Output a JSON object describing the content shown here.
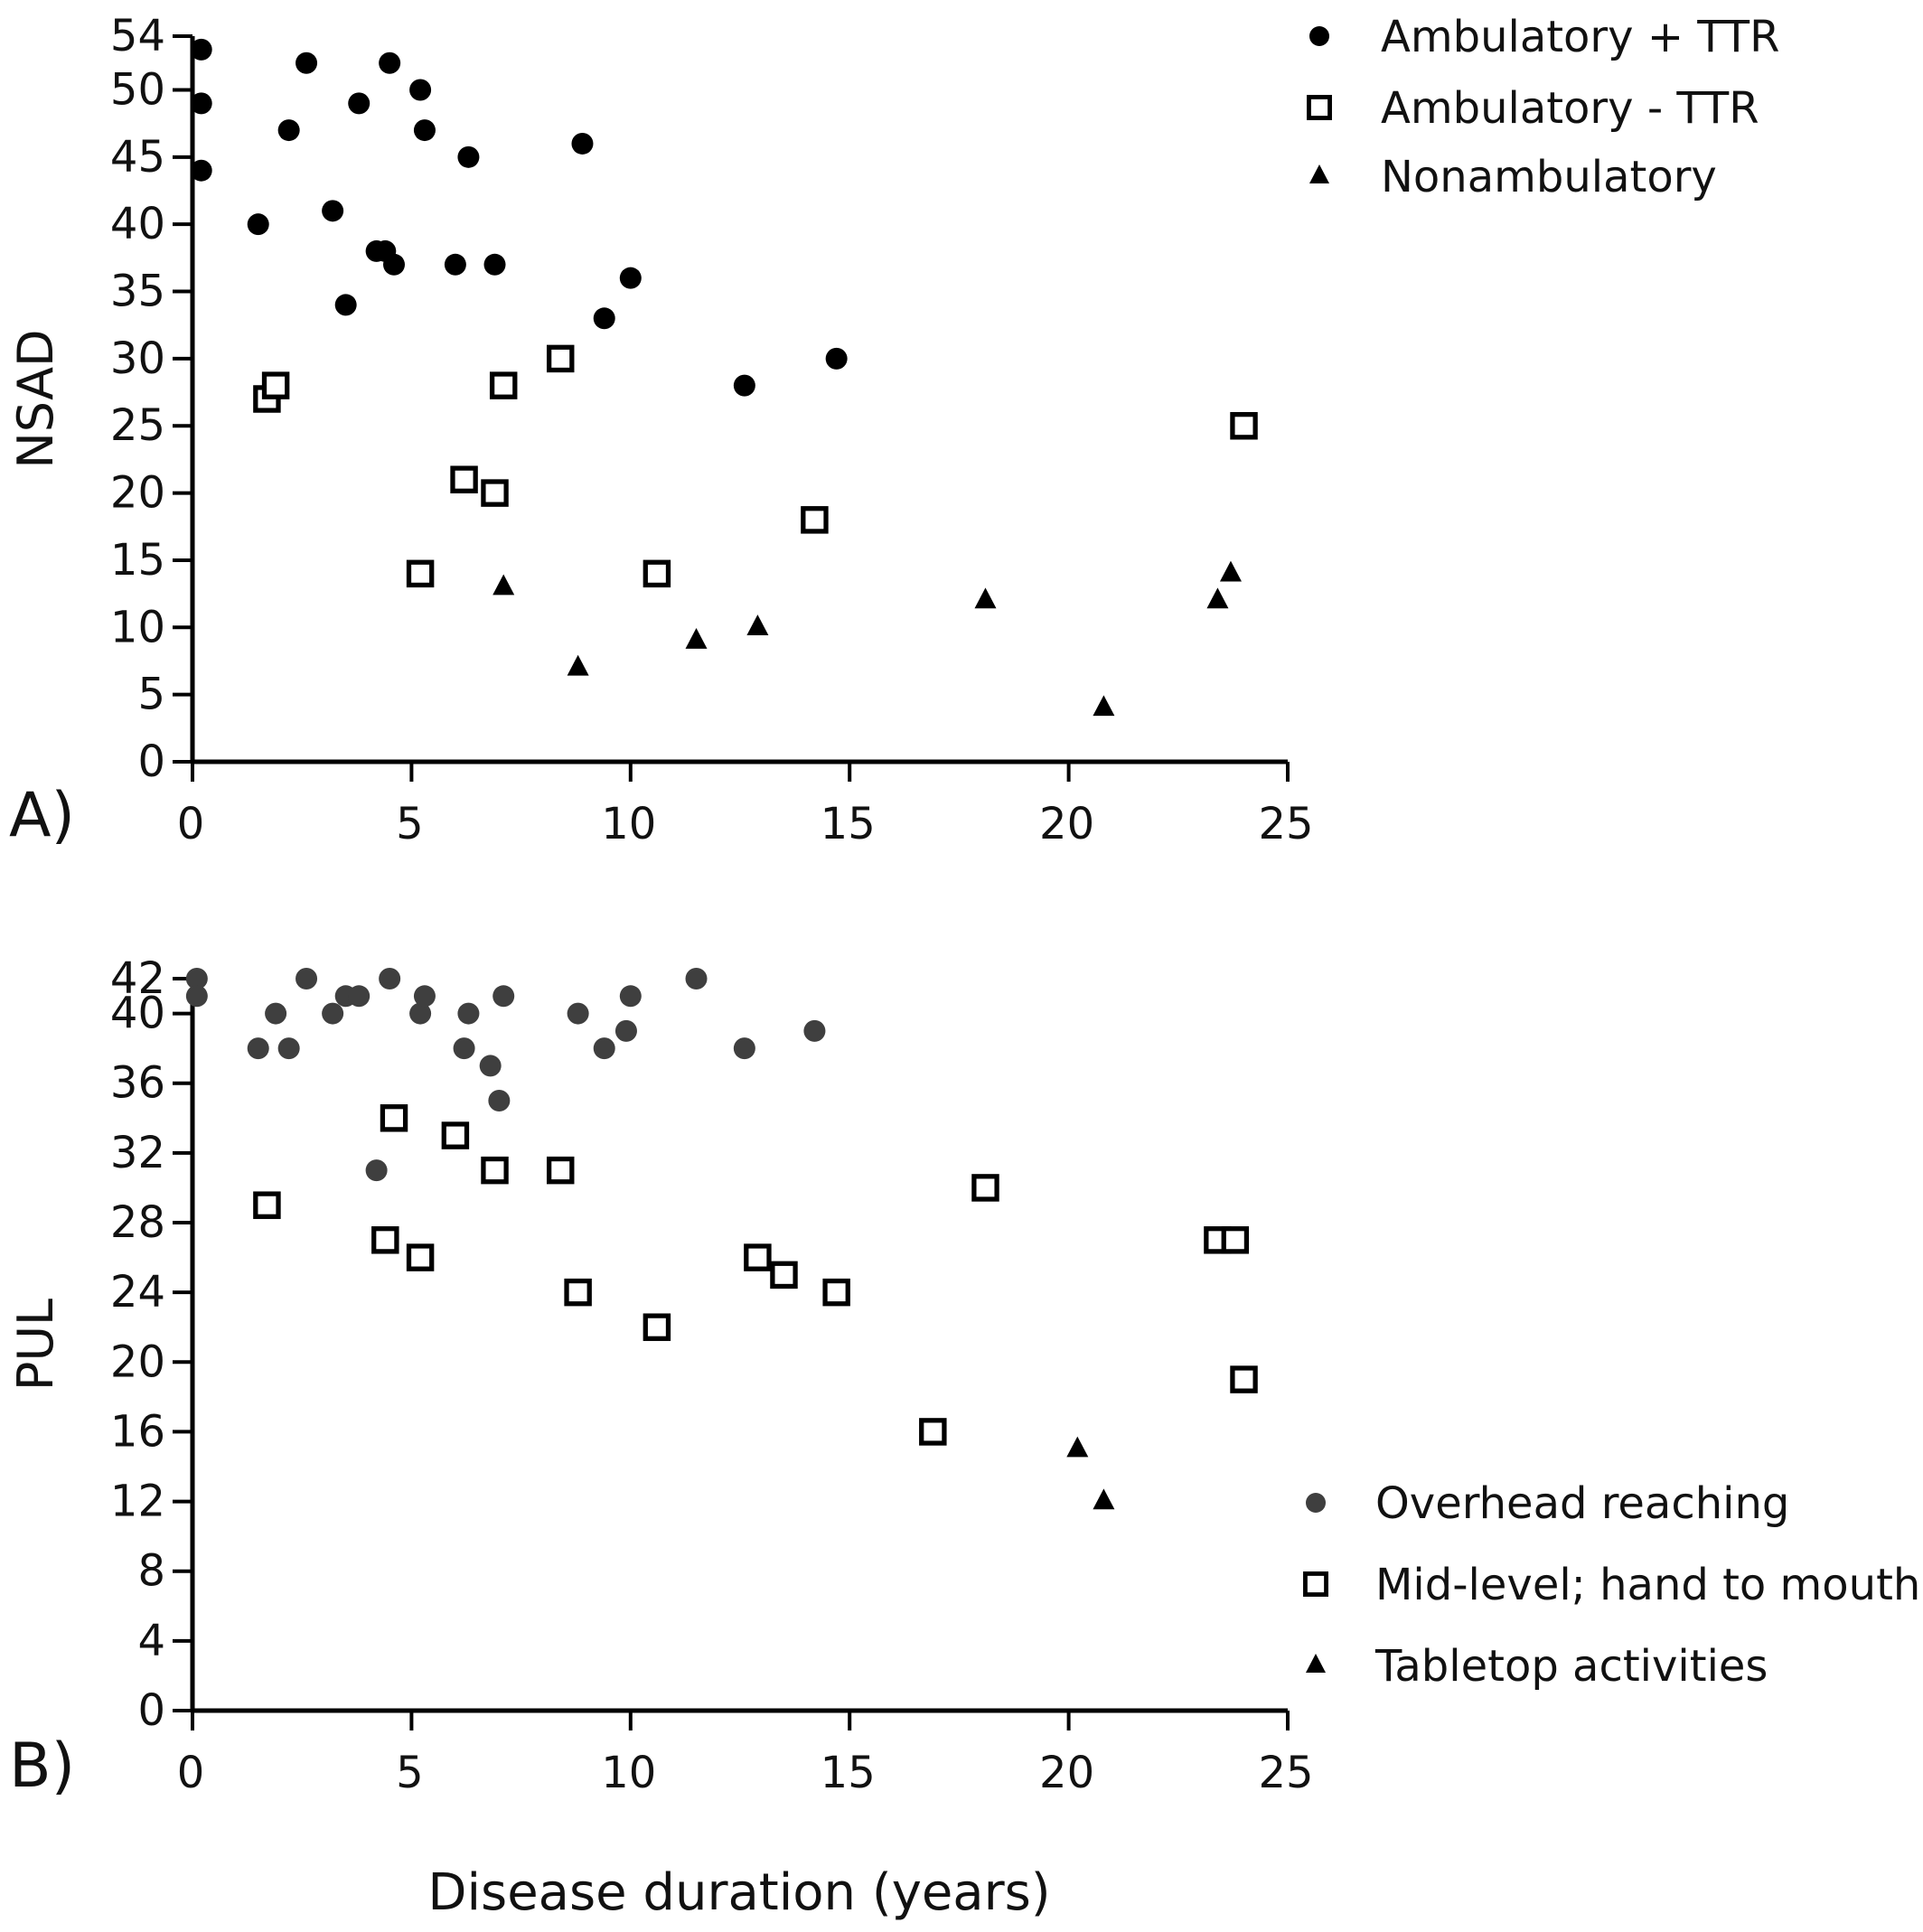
{
  "chart_data": [
    {
      "type": "scatter",
      "panel_label": "A)",
      "xlabel": "",
      "ylabel": "NSAD",
      "xlim": [
        0,
        25
      ],
      "ylim": [
        0,
        54
      ],
      "xticks": [
        0,
        5,
        10,
        15,
        20,
        25
      ],
      "yticks": [
        0,
        5,
        10,
        15,
        20,
        25,
        30,
        35,
        40,
        45,
        50,
        54
      ],
      "grid": false,
      "legend_position": "top-right",
      "series": [
        {
          "name": "Ambulatory + TTR",
          "marker": "circle",
          "color": "#000000",
          "points": [
            [
              0.2,
              53
            ],
            [
              0.2,
              49
            ],
            [
              0.2,
              44
            ],
            [
              1.5,
              40
            ],
            [
              2.2,
              47
            ],
            [
              2.6,
              52
            ],
            [
              3.2,
              41
            ],
            [
              3.5,
              34
            ],
            [
              3.8,
              49
            ],
            [
              4.2,
              38
            ],
            [
              4.4,
              38
            ],
            [
              4.5,
              52
            ],
            [
              4.6,
              37
            ],
            [
              5.2,
              50
            ],
            [
              5.3,
              47
            ],
            [
              6.0,
              37
            ],
            [
              6.3,
              45
            ],
            [
              6.9,
              37
            ],
            [
              8.9,
              46
            ],
            [
              9.4,
              33
            ],
            [
              10.0,
              36
            ],
            [
              12.6,
              28
            ],
            [
              14.7,
              30
            ]
          ]
        },
        {
          "name": "Ambulatory - TTR",
          "marker": "square-open",
          "color": "#000000",
          "points": [
            [
              1.7,
              27
            ],
            [
              1.9,
              28
            ],
            [
              5.2,
              14
            ],
            [
              6.2,
              21
            ],
            [
              6.9,
              20
            ],
            [
              7.1,
              28
            ],
            [
              8.4,
              30
            ],
            [
              10.6,
              14
            ],
            [
              14.2,
              18
            ],
            [
              24.0,
              25
            ]
          ]
        },
        {
          "name": "Nonambulatory",
          "marker": "triangle",
          "color": "#000000",
          "points": [
            [
              7.1,
              13
            ],
            [
              8.8,
              7
            ],
            [
              11.5,
              9
            ],
            [
              12.9,
              10
            ],
            [
              18.1,
              12
            ],
            [
              20.8,
              4
            ],
            [
              23.4,
              12
            ],
            [
              23.7,
              14
            ]
          ]
        }
      ]
    },
    {
      "type": "scatter",
      "panel_label": "B)",
      "xlabel": "Disease duration (years)",
      "ylabel": "PUL",
      "xlim": [
        0,
        25
      ],
      "ylim": [
        0,
        42
      ],
      "xticks": [
        0,
        5,
        10,
        15,
        20,
        25
      ],
      "yticks": [
        0,
        4,
        8,
        12,
        16,
        20,
        24,
        28,
        32,
        36,
        40,
        42
      ],
      "grid": false,
      "legend_position": "bottom-right",
      "series": [
        {
          "name": "Overhead reaching",
          "marker": "circle",
          "color": "#3f3f3f",
          "points": [
            [
              0.1,
              42
            ],
            [
              0.1,
              41
            ],
            [
              1.5,
              38
            ],
            [
              1.9,
              40
            ],
            [
              2.2,
              38
            ],
            [
              2.6,
              42
            ],
            [
              3.2,
              40
            ],
            [
              3.5,
              41
            ],
            [
              3.8,
              41
            ],
            [
              4.2,
              31
            ],
            [
              4.5,
              42
            ],
            [
              5.2,
              40
            ],
            [
              5.3,
              41
            ],
            [
              6.2,
              38
            ],
            [
              6.3,
              40
            ],
            [
              6.8,
              37
            ],
            [
              7.0,
              35
            ],
            [
              7.1,
              41
            ],
            [
              8.8,
              40
            ],
            [
              9.4,
              38
            ],
            [
              9.9,
              39
            ],
            [
              10.0,
              41
            ],
            [
              11.5,
              42
            ],
            [
              12.6,
              38
            ],
            [
              14.2,
              39
            ]
          ]
        },
        {
          "name": "Mid-level; hand to mouth",
          "marker": "square-open",
          "color": "#000000",
          "points": [
            [
              1.7,
              29
            ],
            [
              4.4,
              27
            ],
            [
              4.6,
              34
            ],
            [
              5.2,
              26
            ],
            [
              6.0,
              33
            ],
            [
              6.9,
              31
            ],
            [
              8.4,
              31
            ],
            [
              8.8,
              24
            ],
            [
              10.6,
              22
            ],
            [
              12.9,
              26
            ],
            [
              13.5,
              25
            ],
            [
              14.7,
              24
            ],
            [
              16.9,
              16
            ],
            [
              18.1,
              30
            ],
            [
              23.4,
              27
            ],
            [
              23.8,
              27
            ],
            [
              24.0,
              19
            ]
          ]
        },
        {
          "name": "Tabletop activities",
          "marker": "triangle",
          "color": "#000000",
          "points": [
            [
              20.2,
              15
            ],
            [
              20.8,
              12
            ]
          ]
        }
      ]
    }
  ]
}
